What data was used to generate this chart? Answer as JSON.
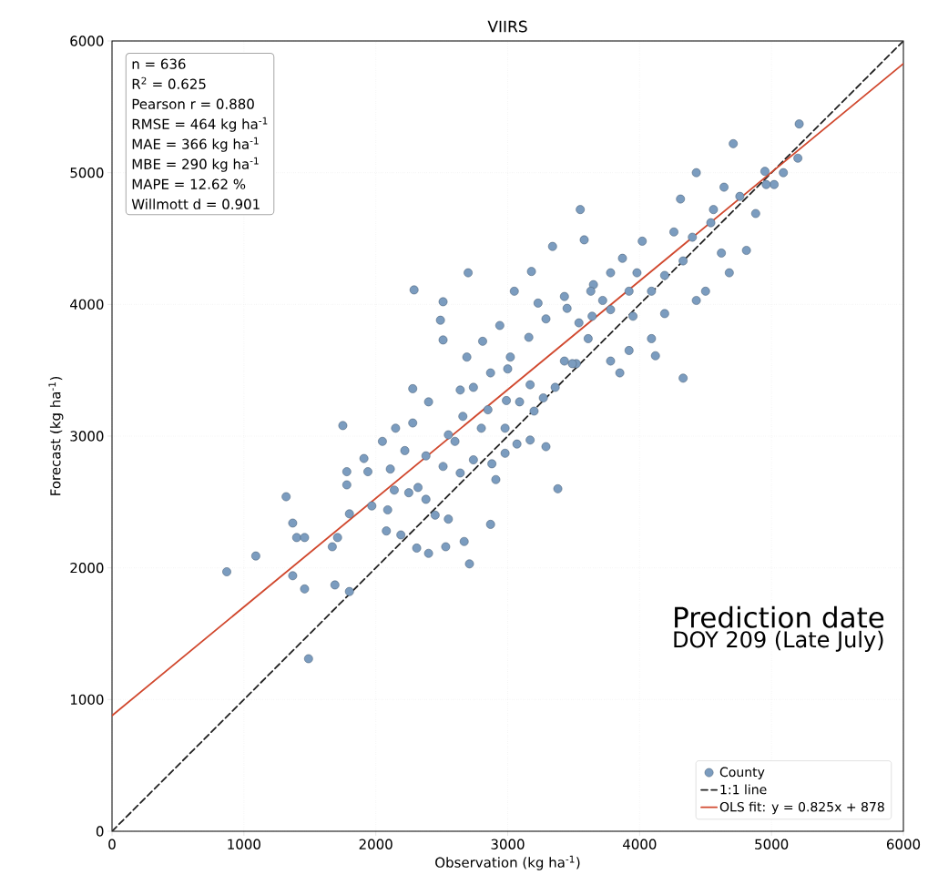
{
  "chart_data": {
    "type": "scatter",
    "title": "VIIRS",
    "xlabel": "Observation (kg ha$^{-1}$)",
    "ylabel": "Forecast (kg ha$^{-1}$)",
    "xlim": [
      0,
      6000
    ],
    "ylim": [
      0,
      6000
    ],
    "xticks": [
      0,
      1000,
      2000,
      3000,
      4000,
      5000,
      6000
    ],
    "yticks": [
      0,
      1000,
      2000,
      3000,
      4000,
      5000,
      6000
    ],
    "grid": true,
    "legend": "bottom right",
    "annotations": [
      "n = 636",
      "R$^{2}$ = 0.625",
      "Pearson r = 0.880",
      "RMSE = 464 kg ha$^{-1}$",
      "MAE  = 366 kg ha$^{-1}$",
      "MBE  = 290 kg ha$^{-1}$",
      "MAPE = 12.62 %",
      "Willmott d = 0.901",
      "Prediction date",
      "DOY 209 (Late July)"
    ],
    "series": [
      {
        "name": "County",
        "marker": "circle",
        "color": "#7b9cbf",
        "x": [
          870,
          1090,
          1320,
          1370,
          1400,
          1460,
          1370,
          1460,
          1490,
          1750,
          1780,
          1780,
          1800,
          1800,
          1690,
          1670,
          1710,
          1910,
          1940,
          2050,
          2150,
          2280,
          2290,
          2510,
          2510,
          2490,
          2700,
          2280,
          2400,
          2110,
          2140,
          2250,
          2380,
          2450,
          2530,
          2710,
          2550,
          2310,
          2400,
          2190,
          2080,
          2090,
          1970,
          2670,
          2870,
          2980,
          2910,
          3070,
          3200,
          3380,
          3170,
          3270,
          3430,
          3540,
          3780,
          3920,
          3780,
          4120,
          4330,
          3950,
          3650,
          4190,
          4330,
          4430,
          4500,
          4620,
          4680,
          4540,
          4310,
          4430,
          4260,
          4020,
          3870,
          3720,
          3580,
          3550,
          3340,
          3180,
          3050,
          2940,
          2810,
          2690,
          2640,
          2740,
          2870,
          3020,
          3160,
          3290,
          3450,
          3640,
          3780,
          3980,
          4190,
          4090,
          3520,
          3360,
          3170,
          2990,
          2850,
          2980,
          2800,
          2660,
          2600,
          2740,
          2880,
          2640,
          2510,
          2380,
          2220,
          2550,
          2320,
          3090,
          3610,
          3850,
          3490,
          3290,
          3920,
          4090,
          4400,
          4760,
          4880,
          5090,
          5200,
          5210,
          4710,
          5020,
          4810,
          4560,
          4640,
          4950,
          4960,
          3430,
          3630,
          3000,
          3230
        ],
        "values": [
          1970,
          2090,
          2540,
          2340,
          2230,
          2230,
          1940,
          1840,
          1310,
          3080,
          2730,
          2630,
          2410,
          1820,
          1870,
          2160,
          2230,
          2830,
          2730,
          2960,
          3060,
          3360,
          4110,
          3730,
          4020,
          3880,
          4240,
          3100,
          3260,
          2750,
          2590,
          2570,
          2520,
          2400,
          2160,
          2030,
          2370,
          2150,
          2110,
          2250,
          2280,
          2440,
          2470,
          2200,
          2330,
          2870,
          2670,
          2940,
          3190,
          2600,
          2970,
          3290,
          3570,
          3860,
          3960,
          3650,
          3570,
          3610,
          3440,
          3910,
          4150,
          4220,
          4330,
          4030,
          4100,
          4390,
          4240,
          4620,
          4800,
          5000,
          4550,
          4480,
          4350,
          4030,
          4490,
          4720,
          4440,
          4250,
          4100,
          3840,
          3720,
          3600,
          3350,
          3370,
          3480,
          3600,
          3750,
          3890,
          3970,
          3910,
          4240,
          4240,
          3930,
          3740,
          3550,
          3370,
          3390,
          3270,
          3200,
          3060,
          3060,
          3150,
          2960,
          2820,
          2790,
          2720,
          2770,
          2850,
          2890,
          3010,
          2610,
          3260,
          3740,
          3480,
          3550,
          2920,
          4100,
          4100,
          4510,
          4820,
          4690,
          5000,
          5110,
          5370,
          5220,
          4910,
          4410,
          4720,
          4890,
          5010,
          4910,
          4060,
          4100,
          3510,
          4010
        ]
      },
      {
        "name": "1:1 line",
        "type": "line",
        "marker": "none",
        "line_style": "dashed",
        "color": "#222222",
        "x": [
          0,
          6000
        ],
        "values": [
          0,
          6000
        ]
      },
      {
        "name": "OLS fit: y = 0.825x + 878",
        "type": "line",
        "marker": "none",
        "line_style": "solid",
        "color": "#d1492f",
        "x": [
          0,
          6000
        ],
        "values": [
          878,
          5828
        ]
      }
    ]
  }
}
